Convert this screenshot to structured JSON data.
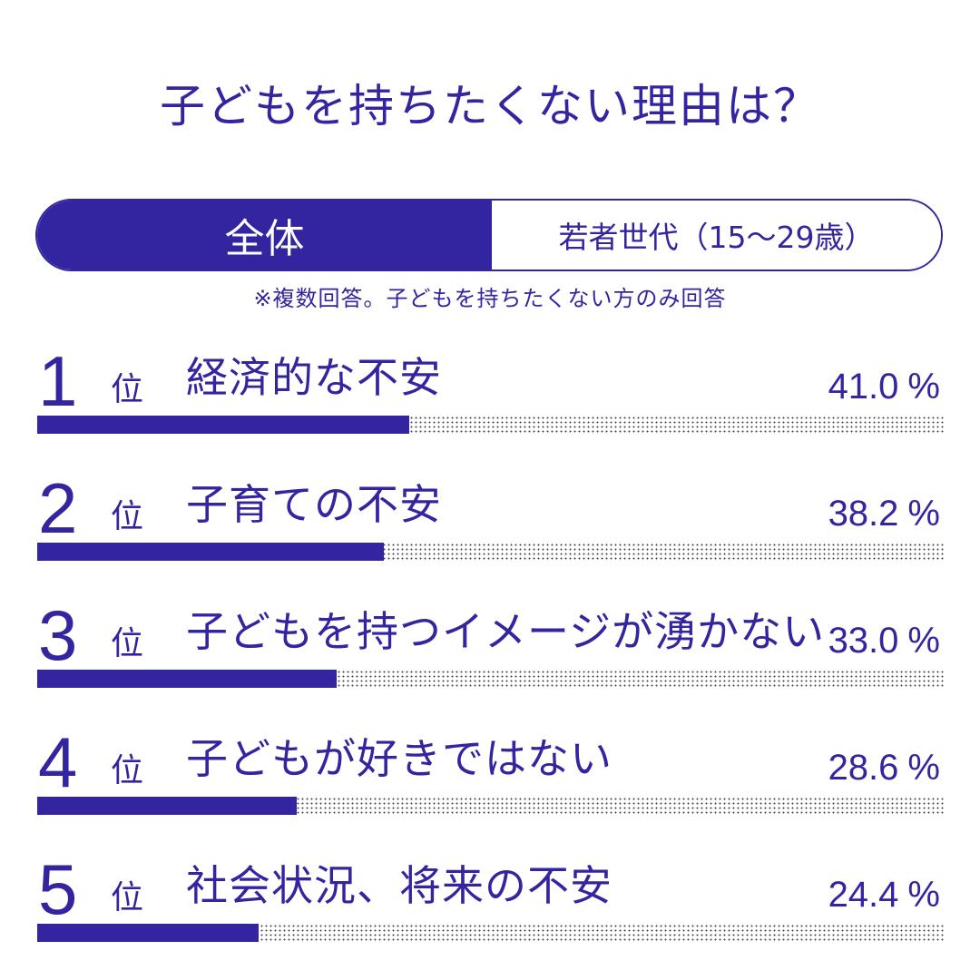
{
  "title": "子どもを持ちたくない理由は？",
  "tabs": {
    "all_label": "全体",
    "young_label": "若者世代（15～29歳）"
  },
  "note": "※複数回答。子どもを持ちたくない方のみ回答",
  "colors": {
    "primary": "#3324a0",
    "dots": "#4a4a4a",
    "background": "#ffffff"
  },
  "chart_data": {
    "type": "bar",
    "orientation": "horizontal",
    "rank_unit": "位",
    "percent_sign": "%",
    "xlim": [
      0,
      100
    ],
    "rows": [
      {
        "rank": "1",
        "label": "経済的な不安",
        "value": 41.0,
        "value_text": "41.0"
      },
      {
        "rank": "2",
        "label": "子育ての不安",
        "value": 38.2,
        "value_text": "38.2"
      },
      {
        "rank": "3",
        "label": "子どもを持つイメージが湧かない",
        "value": 33.0,
        "value_text": "33.0"
      },
      {
        "rank": "4",
        "label": "子どもが好きではない",
        "value": 28.6,
        "value_text": "28.6"
      },
      {
        "rank": "5",
        "label": "社会状況、将来の不安",
        "value": 24.4,
        "value_text": "24.4"
      }
    ]
  }
}
